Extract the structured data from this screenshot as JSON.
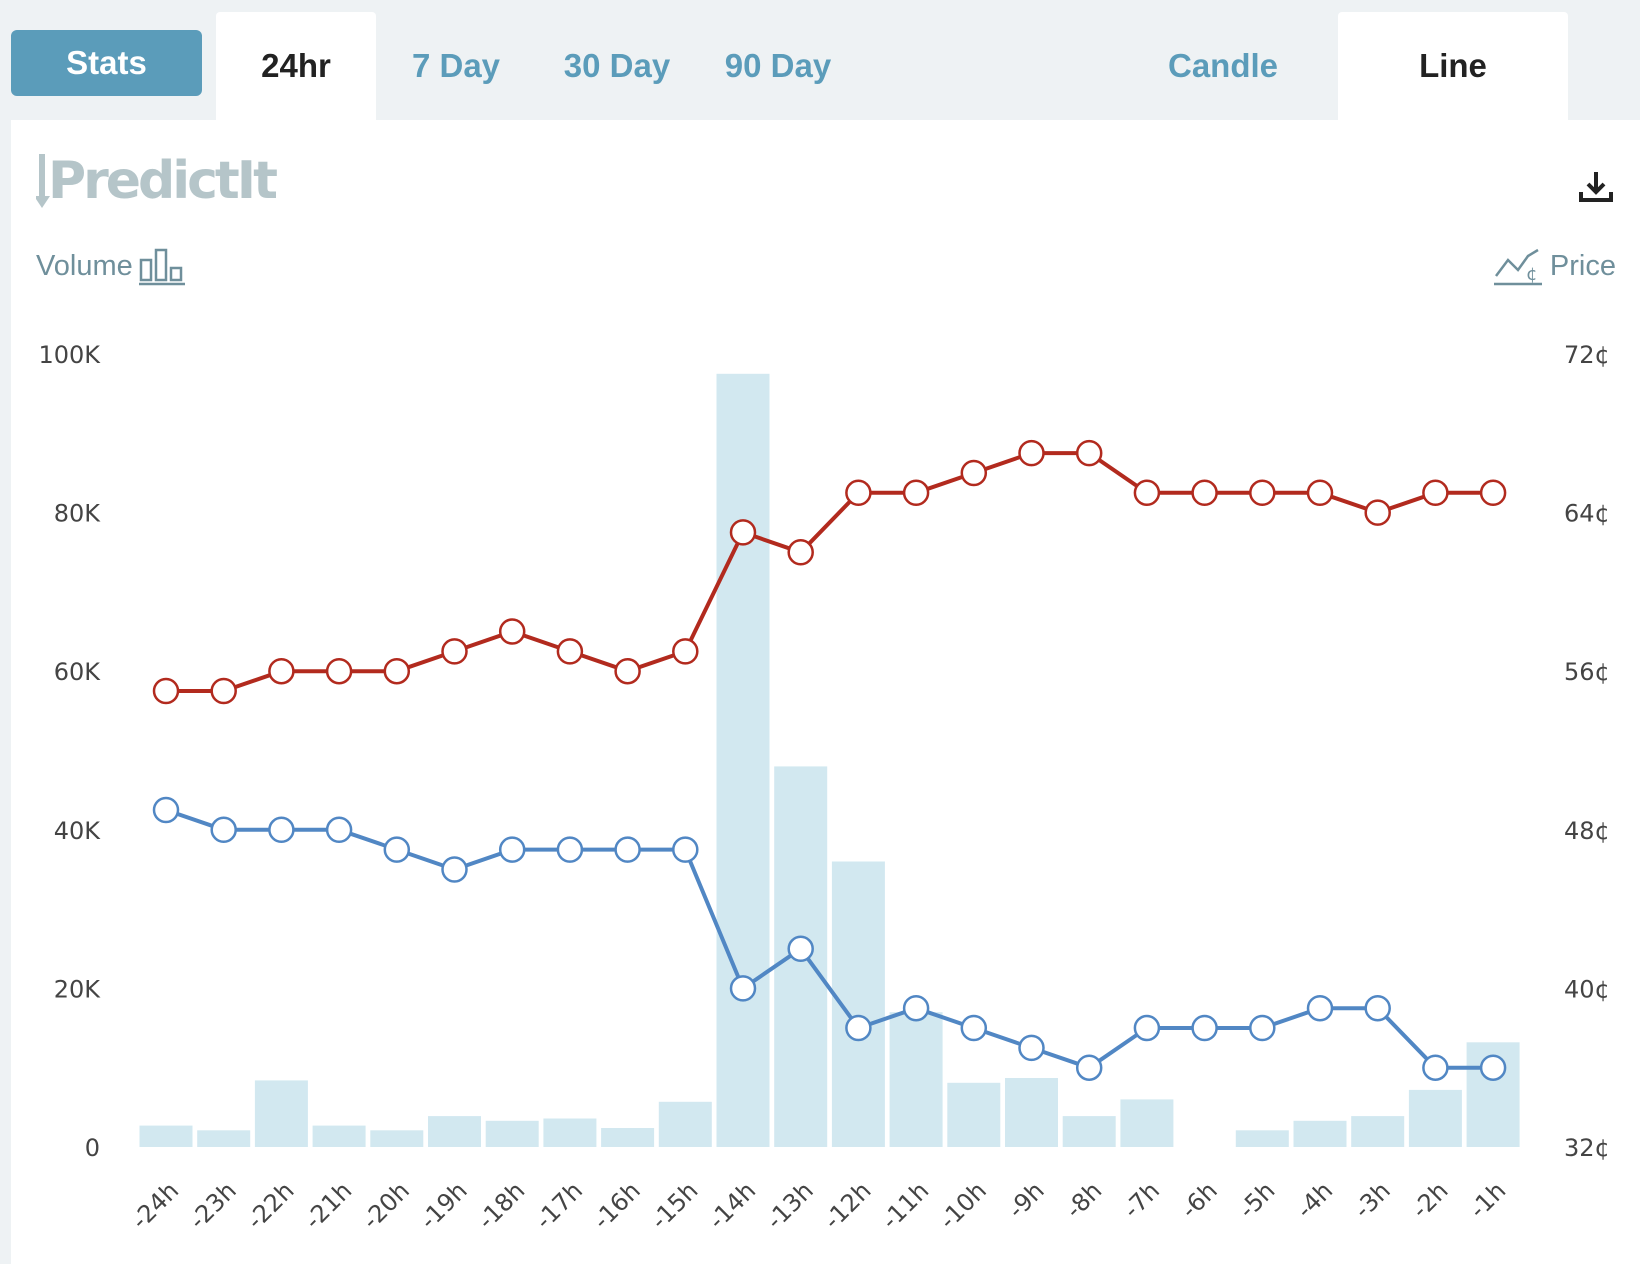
{
  "toolbar": {
    "stats_label": "Stats",
    "range_tabs": [
      "24hr",
      "7 Day",
      "30 Day",
      "90 Day"
    ],
    "active_range": "24hr",
    "view_tabs": [
      "Candle",
      "Line"
    ],
    "active_view": "Line"
  },
  "header": {
    "logo_text": "PredictIt",
    "volume_label": "Volume",
    "price_label": "Price"
  },
  "icons": [
    "download-icon",
    "volume-bars-icon",
    "price-line-icon"
  ],
  "colors": {
    "accent": "#5b9cba",
    "volume_bar": "#d2e8f0",
    "series_red": "#b22a1e",
    "series_blue": "#5187c4"
  },
  "chart_data": {
    "type": "bar+line",
    "categories": [
      "-24h",
      "-23h",
      "-22h",
      "-21h",
      "-20h",
      "-19h",
      "-18h",
      "-17h",
      "-16h",
      "-15h",
      "-14h",
      "-13h",
      "-12h",
      "-11h",
      "-10h",
      "-9h",
      "-8h",
      "-7h",
      "-6h",
      "-5h",
      "-4h",
      "-3h",
      "-2h",
      "-1h"
    ],
    "volume": [
      2700,
      2100,
      8400,
      2700,
      2100,
      3900,
      3300,
      3600,
      2400,
      5700,
      97500,
      48000,
      36000,
      17000,
      8100,
      8700,
      3900,
      6000,
      0,
      2100,
      3300,
      3900,
      7200,
      13200
    ],
    "series": [
      {
        "color": "#b22a1e",
        "values": [
          55,
          55,
          56,
          56,
          56,
          57,
          58,
          57,
          56,
          57,
          63,
          62,
          65,
          65,
          66,
          67,
          67,
          65,
          65,
          65,
          65,
          64,
          65,
          65
        ]
      },
      {
        "color": "#5187c4",
        "values": [
          49,
          48,
          48,
          48,
          47,
          46,
          47,
          47,
          47,
          47,
          40,
          42,
          38,
          39,
          38,
          37,
          36,
          38,
          38,
          38,
          39,
          39,
          36,
          36
        ]
      }
    ],
    "y_left": {
      "ticks": [
        "0",
        "20K",
        "40K",
        "60K",
        "80K",
        "100K"
      ],
      "range": [
        0,
        100000
      ]
    },
    "y_right": {
      "ticks": [
        "32¢",
        "40¢",
        "48¢",
        "56¢",
        "64¢",
        "72¢"
      ],
      "range": [
        32,
        72
      ]
    },
    "grid": false
  }
}
